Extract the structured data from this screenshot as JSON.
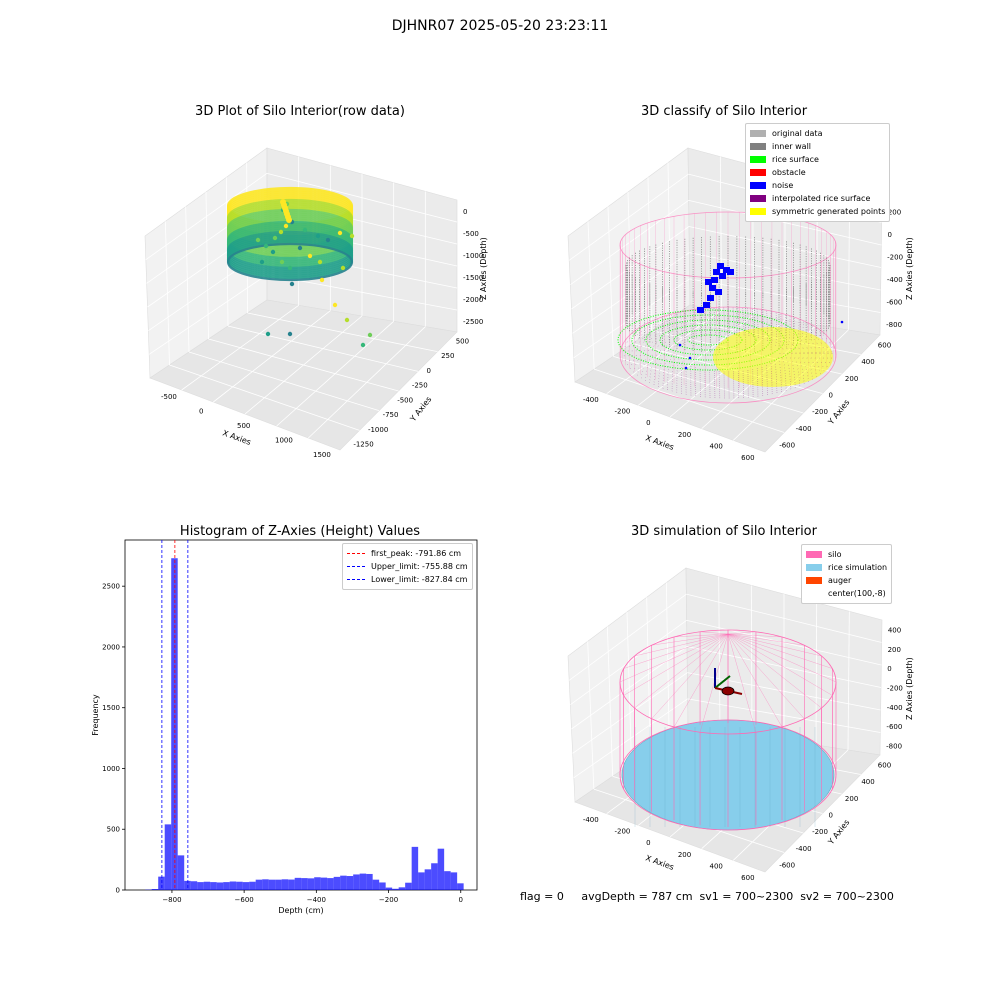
{
  "page_title": "DJHNR07 2025-05-20 23:23:11",
  "chart_data": [
    {
      "type": "scatter",
      "title": "3D Plot of Silo Interior(row data)",
      "xlabel": "X Axies",
      "ylabel": "Y Axies",
      "zlabel": "Z Axies (Depth)",
      "x_ticks": [
        "-500",
        "0",
        "500",
        "1000",
        "1500"
      ],
      "y_ticks": [
        "500",
        "250",
        "0",
        "-250",
        "-500",
        "-750",
        "-1000",
        "-1250"
      ],
      "z_ticks": [
        "0",
        "-500",
        "-1000",
        "-1500",
        "-2000",
        "-2500"
      ],
      "colormap": [
        "#fde725",
        "#b5de2b",
        "#6ece58",
        "#35b779",
        "#1f9e89",
        "#26828e"
      ]
    },
    {
      "type": "scatter",
      "title": "3D classify of Silo Interior",
      "xlabel": "X Axies",
      "ylabel": "Y Axies",
      "zlabel": "Z Axies (Depth)",
      "x_ticks": [
        "-400",
        "-200",
        "0",
        "200",
        "400",
        "600"
      ],
      "y_ticks": [
        "600",
        "400",
        "200",
        "0",
        "-200",
        "-400",
        "-600"
      ],
      "z_ticks": [
        "200",
        "0",
        "-200",
        "-400",
        "-600",
        "-800"
      ],
      "legend": [
        {
          "label": "original data",
          "color": "#b0b0b0"
        },
        {
          "label": "inner wall",
          "color": "#808080"
        },
        {
          "label": "rice surface",
          "color": "#00ff00"
        },
        {
          "label": "obstacle",
          "color": "#ff0000"
        },
        {
          "label": "noise",
          "color": "#0000ff"
        },
        {
          "label": "interpolated rice surface",
          "color": "#800080"
        },
        {
          "label": "symmetric generated points",
          "color": "#ffff00"
        }
      ]
    },
    {
      "type": "bar",
      "title": "Histogram of Z-Axies (Height) Values",
      "xlabel": "Depth (cm)",
      "ylabel": "Frequency",
      "xlim": [
        -930,
        45
      ],
      "ylim": [
        0,
        2880
      ],
      "x_ticks": [
        -800,
        -600,
        -400,
        -200,
        0
      ],
      "y_ticks": [
        0,
        500,
        1000,
        1500,
        2000,
        2500
      ],
      "bar_color": "#0000ff",
      "bins": [
        [
          -874,
          -856,
          3
        ],
        [
          -856,
          -838,
          8
        ],
        [
          -838,
          -820,
          110
        ],
        [
          -820,
          -802,
          540
        ],
        [
          -802,
          -784,
          2730
        ],
        [
          -784,
          -766,
          285
        ],
        [
          -766,
          -748,
          75
        ],
        [
          -748,
          -730,
          72
        ],
        [
          -730,
          -712,
          65
        ],
        [
          -712,
          -694,
          68
        ],
        [
          -694,
          -676,
          65
        ],
        [
          -676,
          -658,
          62
        ],
        [
          -658,
          -640,
          65
        ],
        [
          -640,
          -622,
          70
        ],
        [
          -622,
          -604,
          68
        ],
        [
          -604,
          -586,
          65
        ],
        [
          -586,
          -568,
          68
        ],
        [
          -568,
          -550,
          85
        ],
        [
          -550,
          -532,
          88
        ],
        [
          -532,
          -514,
          85
        ],
        [
          -514,
          -496,
          85
        ],
        [
          -496,
          -478,
          88
        ],
        [
          -478,
          -460,
          86
        ],
        [
          -460,
          -442,
          100
        ],
        [
          -442,
          -424,
          98
        ],
        [
          -424,
          -406,
          96
        ],
        [
          -406,
          -388,
          105
        ],
        [
          -388,
          -370,
          102
        ],
        [
          -370,
          -352,
          98
        ],
        [
          -352,
          -334,
          108
        ],
        [
          -334,
          -316,
          118
        ],
        [
          -316,
          -298,
          115
        ],
        [
          -298,
          -280,
          128
        ],
        [
          -280,
          -262,
          135
        ],
        [
          -262,
          -244,
          132
        ],
        [
          -244,
          -226,
          85
        ],
        [
          -226,
          -208,
          62
        ],
        [
          -208,
          -190,
          20
        ],
        [
          -190,
          -172,
          10
        ],
        [
          -172,
          -154,
          22
        ],
        [
          -154,
          -136,
          60
        ],
        [
          -136,
          -118,
          355
        ],
        [
          -118,
          -100,
          145
        ],
        [
          -100,
          -82,
          170
        ],
        [
          -82,
          -64,
          220
        ],
        [
          -64,
          -46,
          340
        ],
        [
          -46,
          -28,
          155
        ],
        [
          -28,
          -10,
          145
        ],
        [
          -10,
          8,
          55
        ]
      ],
      "vlines": [
        {
          "label": "first_peak: -791.86 cm",
          "x": -791.86,
          "color": "#ff0000"
        },
        {
          "label": "Upper_limit: -755.88 cm",
          "x": -755.88,
          "color": "#0000ff"
        },
        {
          "label": "Lower_limit: -827.84 cm",
          "x": -827.84,
          "color": "#0000ff"
        }
      ]
    },
    {
      "type": "scatter",
      "title": "3D simulation of Silo Interior",
      "xlabel": "X Axies",
      "ylabel": "Y Axies",
      "zlabel": "Z Axies (Depth)",
      "x_ticks": [
        "-400",
        "-200",
        "0",
        "200",
        "400",
        "600"
      ],
      "y_ticks": [
        "600",
        "400",
        "200",
        "0",
        "-200",
        "-400",
        "-600"
      ],
      "z_ticks": [
        "400",
        "200",
        "0",
        "-200",
        "-400",
        "-600",
        "-800"
      ],
      "legend": [
        {
          "label": "silo",
          "color": "#ff69b4"
        },
        {
          "label": "rice simulation",
          "color": "#87ceeb"
        },
        {
          "label": "auger",
          "color": "#ff4500"
        },
        {
          "label": "center(100,-8)",
          "color": ""
        }
      ]
    }
  ],
  "footer": "flag = 0     avgDepth = 787 cm  sv1 = 700~2300  sv2 = 700~2300"
}
